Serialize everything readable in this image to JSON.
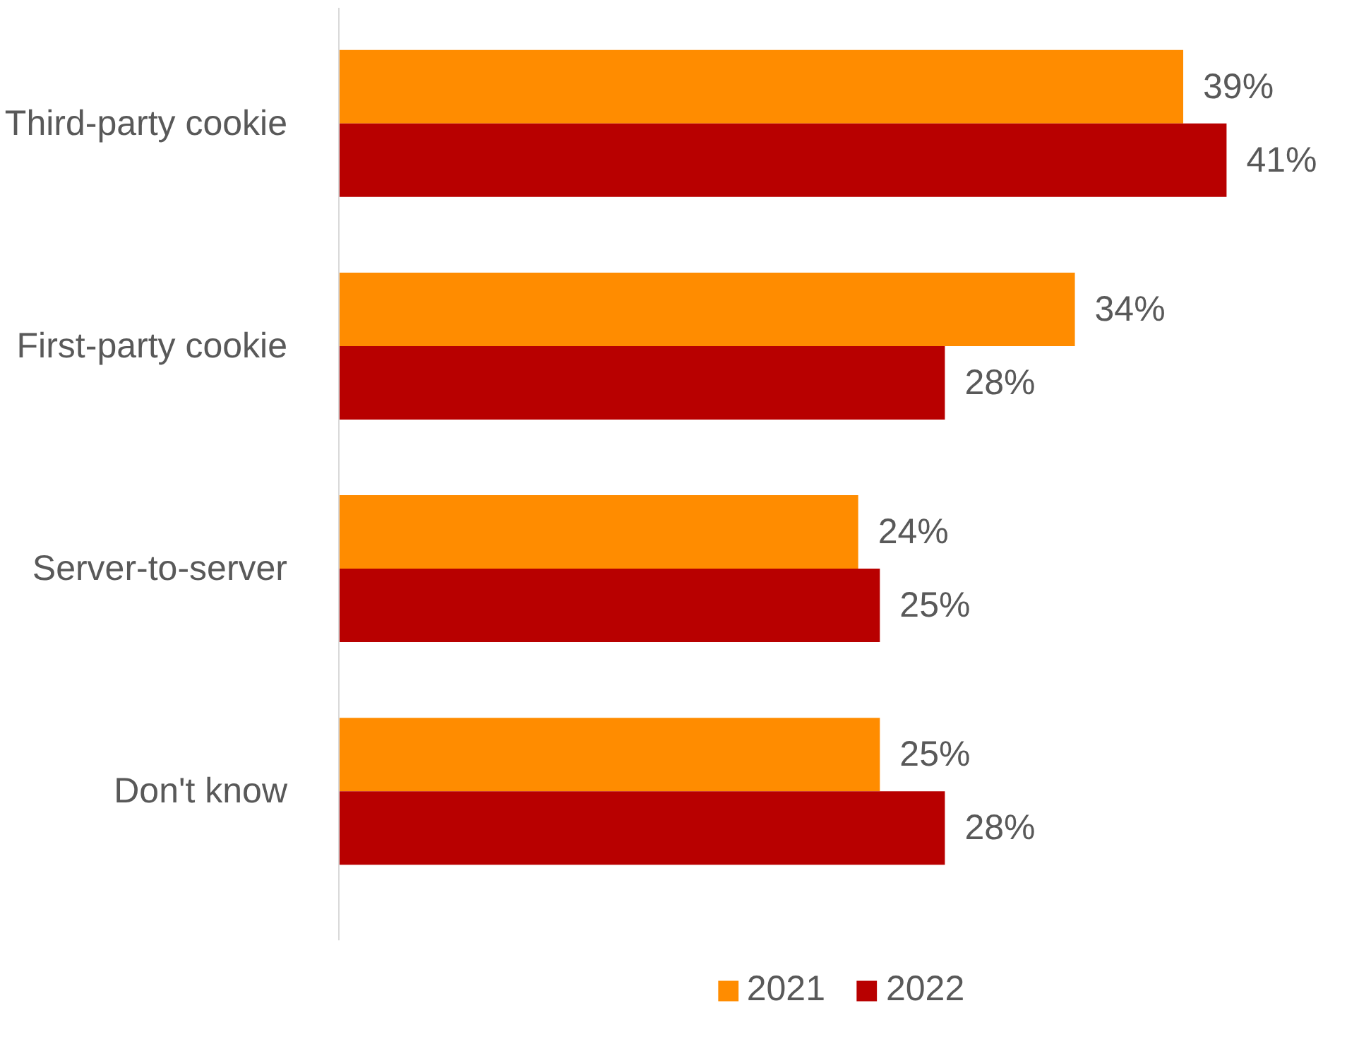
{
  "chart_data": {
    "type": "bar",
    "orientation": "horizontal",
    "categories": [
      "Third-party cookie",
      "First-party cookie",
      "Server-to-server",
      "Don't know"
    ],
    "series": [
      {
        "name": "2021",
        "color": "#ff8c00",
        "values": [
          39,
          34,
          24,
          25
        ],
        "value_labels": [
          "39%",
          "34%",
          "24%",
          "25%"
        ]
      },
      {
        "name": "2022",
        "color": "#b80000",
        "values": [
          41,
          28,
          25,
          28
        ],
        "value_labels": [
          "41%",
          "28%",
          "25%",
          "28%"
        ]
      }
    ],
    "legend": "bottom",
    "grid": false
  }
}
